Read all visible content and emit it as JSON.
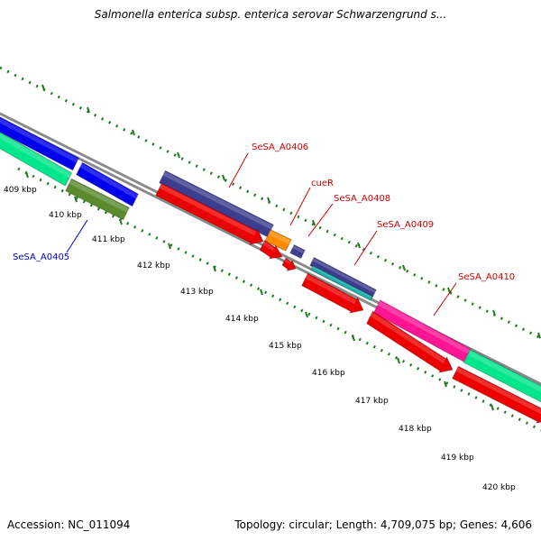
{
  "title": "Salmonella enterica subsp. enterica serovar Schwarzengrund s...",
  "footer": {
    "accession": "Accession: NC_011094",
    "topology": "Topology: circular; Length: 4,709,075 bp; Genes: 4,606"
  },
  "kbp_ticks": [
    "409 kbp",
    "410 kbp",
    "411 kbp",
    "412 kbp",
    "413 kbp",
    "414 kbp",
    "415 kbp",
    "416 kbp",
    "417 kbp",
    "418 kbp",
    "419 kbp",
    "420 kbp"
  ],
  "gene_labels": [
    {
      "text": "SeSA_A0405",
      "color": "#0000cc"
    },
    {
      "text": "SeSA_A0406",
      "color": "#cc0000"
    },
    {
      "text": "cueR",
      "color": "#cc0000"
    },
    {
      "text": "SeSA_A0408",
      "color": "#cc0000"
    },
    {
      "text": "SeSA_A0409",
      "color": "#cc0000"
    },
    {
      "text": "SeSA_A0410",
      "color": "#cc0000"
    }
  ],
  "colors": {
    "backbone": "#8a8a8a",
    "tick_dots": "#1f7a1f",
    "cds_red": "#ee0000",
    "blue": "#0000ee",
    "navy": "#3d3d8f",
    "olive": "#5c8a2e",
    "orange": "#ff8c00",
    "magenta": "#ff1493",
    "teal": "#20b2aa",
    "aquamarine": "#00e68a"
  }
}
